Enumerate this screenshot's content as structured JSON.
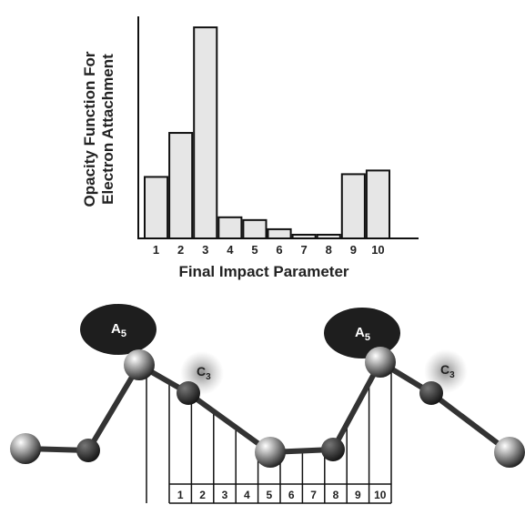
{
  "chart_data": {
    "type": "bar",
    "y_label_lines": [
      "Opacity Function For",
      "Electron Attachment"
    ],
    "x_label": "Final Impact Parameter",
    "categories": [
      "1",
      "2",
      "3",
      "4",
      "5",
      "6",
      "7",
      "8",
      "9",
      "10"
    ],
    "values": [
      67,
      115,
      230,
      23,
      20,
      10,
      4,
      4,
      70,
      74
    ],
    "color": "#e6e6e6",
    "ylim": [
      0,
      240
    ]
  },
  "diagram": {
    "blobs": [
      {
        "letter": "A",
        "sub": "5"
      },
      {
        "letter": "A",
        "sub": "5"
      }
    ],
    "halos": [
      {
        "letter": "C",
        "sub": "3"
      },
      {
        "letter": "C",
        "sub": "3"
      }
    ],
    "strip_labels": [
      "1",
      "2",
      "3",
      "4",
      "5",
      "6",
      "7",
      "8",
      "9",
      "10"
    ]
  }
}
